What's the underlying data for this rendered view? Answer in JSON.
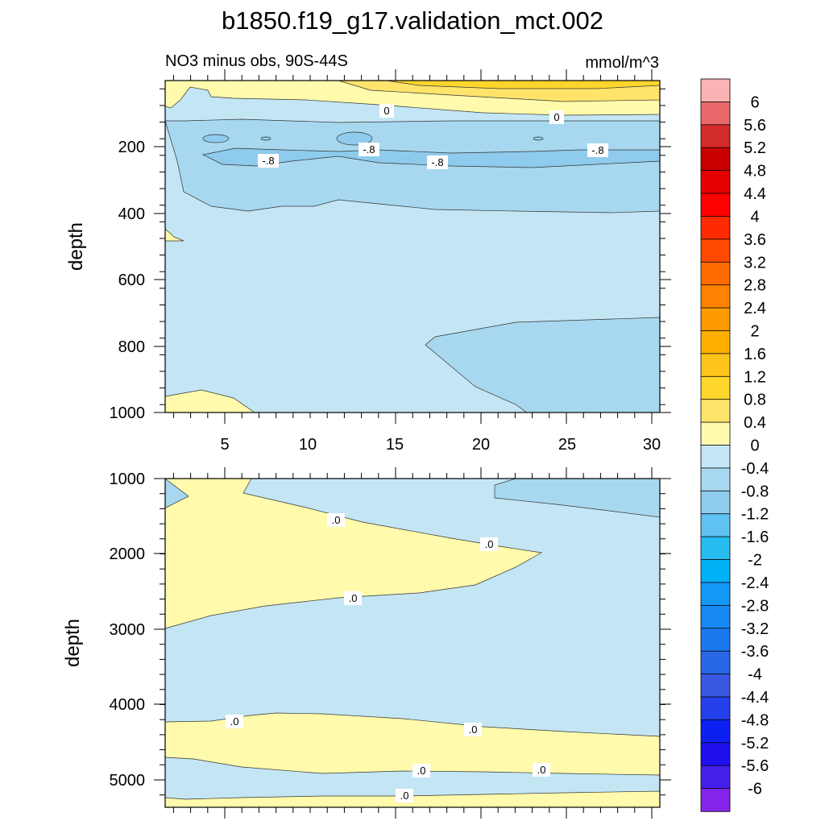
{
  "title": "b1850.f19_g17.validation_mct.002",
  "chart_data": {
    "type": "contour",
    "variable_label": "NO3 minus obs, 90S-44S",
    "units": "mmol/m^3",
    "x_ticks": [
      "5",
      "10",
      "15",
      "20",
      "25",
      "30"
    ],
    "x_range": [
      1.5,
      30.5
    ],
    "panels": [
      {
        "name": "upper",
        "ylabel": "depth",
        "ylim": [
          0,
          1000
        ],
        "y_ticks": [
          "200",
          "400",
          "600",
          "800",
          "1000"
        ],
        "contour_labels": [
          "0",
          "0",
          "-.8",
          "-.8",
          "-.8",
          "-.8"
        ]
      },
      {
        "name": "lower",
        "ylabel": "depth",
        "ylim": [
          1000,
          5350
        ],
        "y_ticks": [
          "1000",
          "2000",
          "3000",
          "4000",
          "5000"
        ],
        "contour_labels": [
          ".0",
          ".0",
          ".0",
          ".0",
          ".0",
          ".0",
          ".0",
          ".0"
        ]
      }
    ],
    "colorbar": {
      "labels": [
        "6",
        "5.6",
        "5.2",
        "4.8",
        "4.4",
        "4",
        "3.6",
        "3.2",
        "2.8",
        "2.4",
        "2",
        "1.6",
        "1.2",
        "0.8",
        "0.4",
        "0",
        "-0.4",
        "-0.8",
        "-1.2",
        "-1.6",
        "-2",
        "-2.4",
        "-2.8",
        "-3.2",
        "-3.6",
        "-4",
        "-4.4",
        "-4.8",
        "-5.2",
        "-5.6",
        "-6"
      ],
      "colors": [
        "#fcb3b3",
        "#e8676a",
        "#d32a2a",
        "#c80000",
        "#e60000",
        "#ff0000",
        "#ff2a00",
        "#ff4800",
        "#ff6a00",
        "#ff8200",
        "#ff9a00",
        "#ffb000",
        "#fec41c",
        "#fed62c",
        "#fee46a",
        "#fffaac",
        "#c4e6f4",
        "#a7d8ef",
        "#8ecbec",
        "#5fc2f2",
        "#28bdf2",
        "#00b2f6",
        "#1498f7",
        "#1888f2",
        "#1a78ee",
        "#2868e6",
        "#3a58e0",
        "#2440ea",
        "#0c20f2",
        "#2010ee",
        "#4420ea",
        "#8424ea"
      ]
    }
  }
}
